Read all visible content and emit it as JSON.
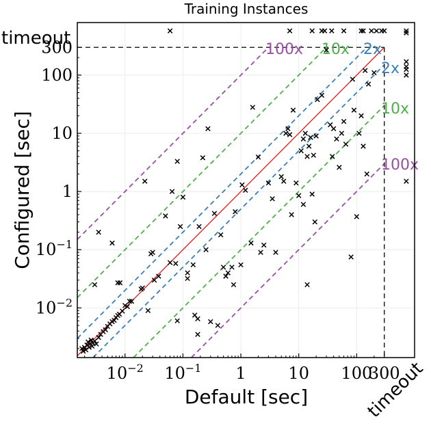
{
  "chart_data": {
    "type": "scatter",
    "title": "Training Instances",
    "xlabel": "Default [sec]",
    "ylabel": "Configured [sec]",
    "scale": "log",
    "xlim": [
      0.0015,
      1000
    ],
    "ylim": [
      0.0014,
      800
    ],
    "cutoff": 300,
    "timeout_label": "timeout",
    "x_ticks": [
      {
        "value": 0.01,
        "base": "10",
        "exp": "−2"
      },
      {
        "value": 0.1,
        "base": "10",
        "exp": "−1"
      },
      {
        "value": 1,
        "base": "1",
        "exp": ""
      },
      {
        "value": 10,
        "base": "10",
        "exp": ""
      },
      {
        "value": 100,
        "base": "100",
        "exp": ""
      },
      {
        "value": 300,
        "base": "300",
        "exp": ""
      }
    ],
    "y_ticks": [
      {
        "value": 0.01,
        "base": "10",
        "exp": "−2"
      },
      {
        "value": 0.1,
        "base": "10",
        "exp": "−1"
      },
      {
        "value": 1,
        "base": "1",
        "exp": ""
      },
      {
        "value": 10,
        "base": "10",
        "exp": ""
      },
      {
        "value": 100,
        "base": "100",
        "exp": ""
      },
      {
        "value": 300,
        "base": "300",
        "exp": ""
      }
    ],
    "reference_lines": [
      {
        "factor": 100,
        "label": "100x",
        "color": "#984ea3"
      },
      {
        "factor": 10,
        "label": "10x",
        "color": "#4daf4a"
      },
      {
        "factor": 2,
        "label": "2x",
        "color": "#377eb8"
      }
    ],
    "diagonal_color": "#e41a1c",
    "marker": "x",
    "points": [
      [
        0.0018,
        0.002
      ],
      [
        0.0019,
        0.0018
      ],
      [
        0.002,
        0.0021
      ],
      [
        0.0021,
        0.0019
      ],
      [
        0.0022,
        0.0023
      ],
      [
        0.0023,
        0.0026
      ],
      [
        0.0024,
        0.0021
      ],
      [
        0.0025,
        0.0024
      ],
      [
        0.0026,
        0.0028
      ],
      [
        0.0027,
        0.0022
      ],
      [
        0.0028,
        0.0025
      ],
      [
        0.003,
        0.0027
      ],
      [
        0.0032,
        0.0024
      ],
      [
        0.0035,
        0.0031
      ],
      [
        0.0038,
        0.0035
      ],
      [
        0.0042,
        0.0039
      ],
      [
        0.0046,
        0.0042
      ],
      [
        0.005,
        0.0048
      ],
      [
        0.0055,
        0.0053
      ],
      [
        0.006,
        0.0058
      ],
      [
        0.0065,
        0.0061
      ],
      [
        0.007,
        0.0068
      ],
      [
        0.0075,
        0.0074
      ],
      [
        0.008,
        0.0078
      ],
      [
        0.009,
        0.0088
      ],
      [
        0.01,
        0.011
      ],
      [
        0.011,
        0.0105
      ],
      [
        0.012,
        0.013
      ],
      [
        0.013,
        0.013
      ],
      [
        0.0075,
        0.027
      ],
      [
        0.0082,
        0.027
      ],
      [
        0.003,
        0.025
      ],
      [
        0.0035,
        0.2
      ],
      [
        0.006,
        0.13
      ],
      [
        0.019,
        0.021
      ],
      [
        0.02,
        0.022
      ],
      [
        0.025,
        0.009
      ],
      [
        0.028,
        0.085
      ],
      [
        0.03,
        0.09
      ],
      [
        0.032,
        0.03
      ],
      [
        0.038,
        0.035
      ],
      [
        0.022,
        1.5
      ],
      [
        0.05,
        0.38
      ],
      [
        0.06,
        0.06
      ],
      [
        0.065,
        1.0
      ],
      [
        0.075,
        0.058
      ],
      [
        0.08,
        0.006
      ],
      [
        0.08,
        3.3
      ],
      [
        0.09,
        0.25
      ],
      [
        0.1,
        0.8
      ],
      [
        0.12,
        0.04
      ],
      [
        0.12,
        0.032
      ],
      [
        0.15,
        0.055
      ],
      [
        0.16,
        0.0075
      ],
      [
        0.18,
        0.0065
      ],
      [
        0.18,
        0.0035
      ],
      [
        0.19,
        0.25
      ],
      [
        0.22,
        3.8
      ],
      [
        0.25,
        0.1
      ],
      [
        0.27,
        12
      ],
      [
        0.3,
        0.0058
      ],
      [
        0.35,
        0.42
      ],
      [
        0.4,
        0.005
      ],
      [
        0.45,
        0.18
      ],
      [
        0.5,
        0.05
      ],
      [
        0.55,
        0.035
      ],
      [
        0.6,
        0.04
      ],
      [
        0.7,
        0.05
      ],
      [
        0.75,
        0.025
      ],
      [
        0.8,
        0.45
      ],
      [
        1.0,
        0.055
      ],
      [
        1.05,
        1.3
      ],
      [
        1.2,
        1.05
      ],
      [
        1.5,
        0.13
      ],
      [
        1.6,
        28
      ],
      [
        2.0,
        3.9
      ],
      [
        2.2,
        0.09
      ],
      [
        2.5,
        0.12
      ],
      [
        3.0,
        1.4
      ],
      [
        3.5,
        0.75
      ],
      [
        4.0,
        0.09
      ],
      [
        5.0,
        1.8
      ],
      [
        5.5,
        1.5
      ],
      [
        6.0,
        10
      ],
      [
        6.5,
        12
      ],
      [
        7.0,
        9.5
      ],
      [
        7.5,
        0.4
      ],
      [
        8.0,
        25
      ],
      [
        9.0,
        1.4
      ],
      [
        10,
        0.85
      ],
      [
        11,
        5
      ],
      [
        12,
        0.6
      ],
      [
        12,
        8
      ],
      [
        13,
        10
      ],
      [
        14,
        0.025
      ],
      [
        14,
        4
      ],
      [
        15,
        6
      ],
      [
        16,
        8.5
      ],
      [
        17,
        0.9
      ],
      [
        18,
        4.2
      ],
      [
        19,
        0.3
      ],
      [
        20,
        9
      ],
      [
        21,
        38
      ],
      [
        25,
        45
      ],
      [
        30,
        270
      ],
      [
        35,
        14
      ],
      [
        38,
        4
      ],
      [
        40,
        12
      ],
      [
        45,
        8
      ],
      [
        50,
        2.6
      ],
      [
        55,
        10
      ],
      [
        60,
        16
      ],
      [
        65,
        6.5
      ],
      [
        80,
        0.075
      ],
      [
        85,
        85
      ],
      [
        90,
        25
      ],
      [
        100,
        0.37
      ],
      [
        110,
        10
      ],
      [
        120,
        20
      ],
      [
        130,
        6
      ],
      [
        140,
        120
      ],
      [
        150,
        2
      ],
      [
        160,
        70
      ],
      [
        200,
        110
      ]
    ],
    "timeout_x_points": [
      0.06,
      28,
      17,
      25,
      37,
      7,
      60,
      120,
      130,
      180,
      220,
      270,
      300
    ],
    "timeout_y_points": [
      100,
      125,
      140,
      170,
      1.5
    ]
  }
}
